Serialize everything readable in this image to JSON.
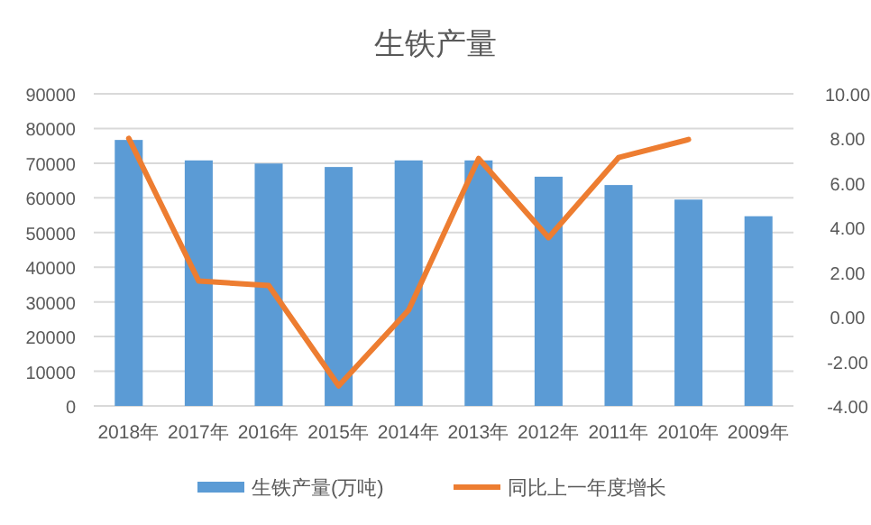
{
  "chart_data": {
    "type": "bar",
    "title": "生铁产量",
    "categories": [
      "2018年",
      "2017年",
      "2016年",
      "2015年",
      "2014年",
      "2013年",
      "2012年",
      "2011年",
      "2010年",
      "2009年"
    ],
    "series": [
      {
        "name": "生铁产量(万吨)",
        "color": "#5b9bd5",
        "values": [
          76700,
          70800,
          69900,
          68900,
          70800,
          70800,
          66100,
          63700,
          59500,
          54700
        ]
      },
      {
        "name": "同比上一年度增长",
        "type": "line",
        "axis": "y2",
        "color": "#ed7d31",
        "values": [
          8.0,
          1.6,
          1.4,
          -3.1,
          0.3,
          7.1,
          3.55,
          7.14,
          7.95,
          null
        ]
      }
    ],
    "ylim": [
      0,
      90000
    ],
    "yticks": [
      0,
      10000,
      20000,
      30000,
      40000,
      50000,
      60000,
      70000,
      80000,
      90000
    ],
    "y2lim": [
      -4,
      10
    ],
    "y2ticks": [
      {
        "value": -4,
        "label": "-4.00"
      },
      {
        "value": -2,
        "label": "-2.00"
      },
      {
        "value": 0,
        "label": "0.00"
      },
      {
        "value": 2,
        "label": "2.00"
      },
      {
        "value": 4,
        "label": "4.00"
      },
      {
        "value": 6,
        "label": "6.00"
      },
      {
        "value": 8,
        "label": "8.00"
      },
      {
        "value": 10,
        "label": "10.00"
      }
    ],
    "grid": "y",
    "legend": "bottom"
  }
}
